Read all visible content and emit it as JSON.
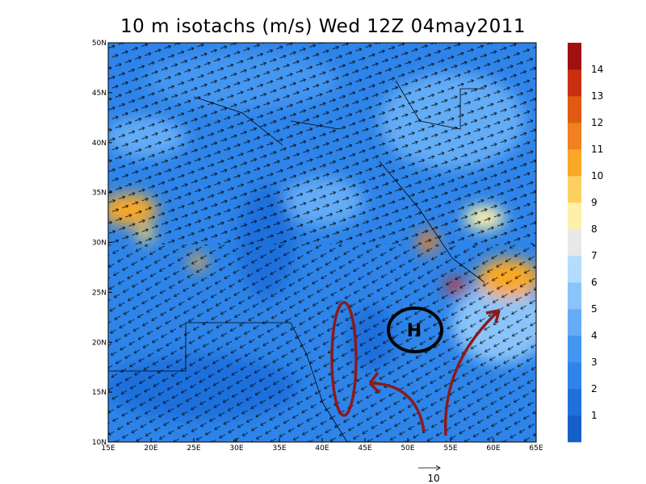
{
  "title": "10 m isotachs (m/s) Wed 12Z 04may2011",
  "lat_labels": [
    "10N",
    "15N",
    "20N",
    "25N",
    "30N",
    "35N",
    "40N",
    "45N",
    "50N"
  ],
  "lon_labels": [
    "15E",
    "20E",
    "25E",
    "30E",
    "35E",
    "40E",
    "45E",
    "50E",
    "55E",
    "60E",
    "65E"
  ],
  "colorbar": {
    "labels": [
      1,
      2,
      3,
      4,
      5,
      6,
      7,
      8,
      9,
      10,
      11,
      12,
      13,
      14
    ],
    "colors": [
      "#1560c8",
      "#1f70dc",
      "#2e84e8",
      "#4496f0",
      "#64acf6",
      "#8ac4fa",
      "#b4dcfc",
      "#e8e8e8",
      "#fef0a8",
      "#fcd060",
      "#f9a828",
      "#f08020",
      "#e05a14",
      "#c83010",
      "#a01010"
    ]
  },
  "annotation": "H",
  "vector_reference": "10"
}
